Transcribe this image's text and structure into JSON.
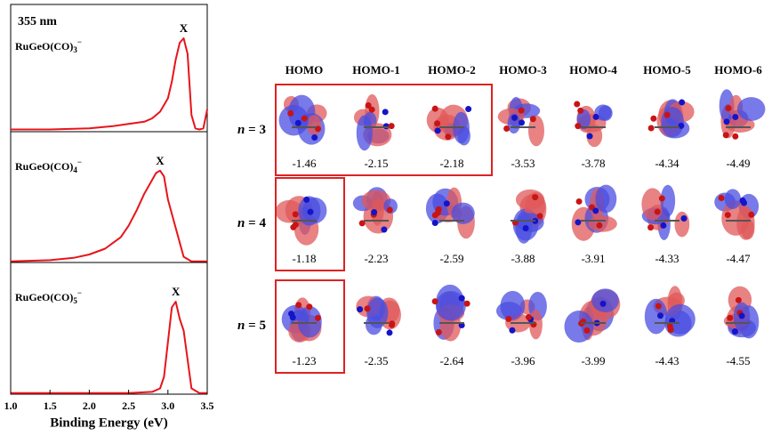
{
  "chart_data": [
    {
      "type": "line",
      "annotation": "355 nm",
      "label": [
        "RuGeO(CO)",
        "3",
        "−"
      ],
      "peak_label": "X",
      "color": "#e8141b",
      "xlim": [
        1,
        3.5
      ],
      "ylim": [
        0,
        1
      ],
      "x": [
        1.0,
        1.5,
        2.0,
        2.3,
        2.5,
        2.7,
        2.8,
        2.9,
        3.0,
        3.05,
        3.1,
        3.15,
        3.2,
        3.25,
        3.3,
        3.35,
        3.4,
        3.45,
        3.5
      ],
      "values": [
        0.02,
        0.02,
        0.03,
        0.05,
        0.07,
        0.09,
        0.12,
        0.18,
        0.3,
        0.45,
        0.65,
        0.8,
        0.84,
        0.7,
        0.15,
        0.03,
        0.02,
        0.03,
        0.2
      ]
    },
    {
      "type": "line",
      "label": [
        "RuGeO(CO)",
        "4",
        "−"
      ],
      "peak_label": "X",
      "color": "#e8141b",
      "xlim": [
        1,
        3.5
      ],
      "ylim": [
        0,
        1
      ],
      "x": [
        1.0,
        1.5,
        1.8,
        2.0,
        2.2,
        2.4,
        2.5,
        2.6,
        2.7,
        2.8,
        2.85,
        2.9,
        2.95,
        3.0,
        3.1,
        3.2,
        3.3,
        3.5
      ],
      "values": [
        0.01,
        0.02,
        0.04,
        0.07,
        0.12,
        0.22,
        0.32,
        0.45,
        0.6,
        0.72,
        0.78,
        0.8,
        0.75,
        0.55,
        0.3,
        0.05,
        0.01,
        0.01
      ]
    },
    {
      "type": "line",
      "label": [
        "RuGeO(CO)",
        "5",
        "−"
      ],
      "peak_label": "X",
      "color": "#e8141b",
      "xlim": [
        1,
        3.5
      ],
      "ylim": [
        0,
        1
      ],
      "x": [
        1.0,
        2.0,
        2.5,
        2.8,
        2.9,
        2.95,
        3.0,
        3.05,
        3.1,
        3.15,
        3.2,
        3.25,
        3.3,
        3.4,
        3.5
      ],
      "values": [
        0.01,
        0.01,
        0.01,
        0.02,
        0.05,
        0.15,
        0.45,
        0.75,
        0.8,
        0.65,
        0.55,
        0.3,
        0.05,
        0.01,
        0.01
      ],
      "x_label": "Binding Energy (eV)",
      "xticks": [
        {
          "value": 1,
          "label": "1.0"
        },
        1.5,
        {
          "value": 2,
          "label": "2.0"
        },
        2.5,
        {
          "value": 3,
          "label": "3.0"
        },
        3.5
      ]
    }
  ],
  "orbitals": {
    "columns": [
      "HOMO",
      "HOMO-1",
      "HOMO-2",
      "HOMO-3",
      "HOMO-4",
      "HOMO-5",
      "HOMO-6"
    ],
    "rows": [
      {
        "label": [
          "n",
          " = 3"
        ],
        "energies": [
          -1.46,
          -2.15,
          -2.18,
          -3.53,
          -3.78,
          -4.34,
          -4.49
        ],
        "highlighted": 3
      },
      {
        "label": [
          "n",
          " = 4"
        ],
        "energies": [
          -1.18,
          -2.23,
          -2.59,
          -3.88,
          -3.91,
          -4.33,
          -4.47
        ],
        "highlighted": 1
      },
      {
        "label": [
          "n",
          " = 5"
        ],
        "energies": [
          -1.23,
          -2.35,
          -2.64,
          -3.96,
          -3.99,
          -4.43,
          -4.55
        ],
        "highlighted": 1
      }
    ]
  }
}
